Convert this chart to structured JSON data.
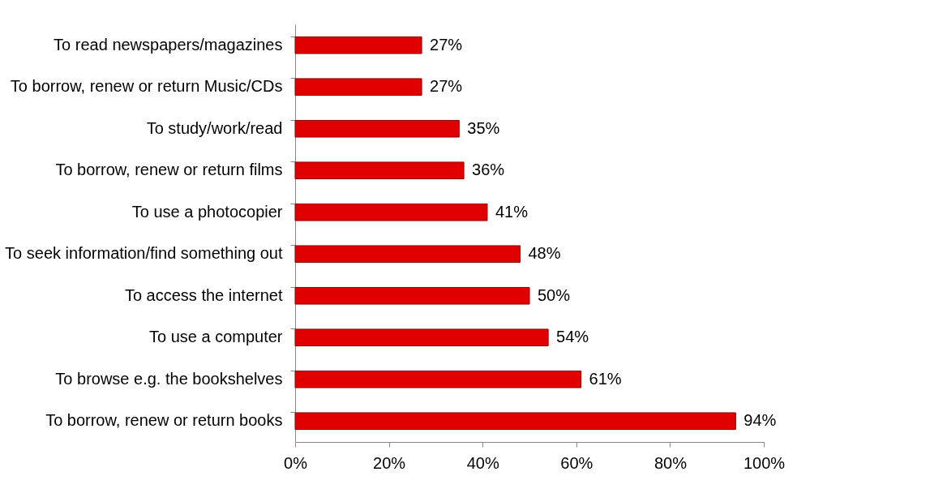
{
  "chart_data": {
    "type": "bar",
    "orientation": "horizontal",
    "categories": [
      "To read newspapers/magazines",
      "To borrow, renew or return Music/CDs",
      "To study/work/read",
      "To borrow, renew or return films",
      "To use a photocopier",
      "To seek information/find something out",
      "To access the internet",
      "To use a computer",
      "To browse e.g. the bookshelves",
      "To borrow, renew or return books"
    ],
    "values": [
      27,
      27,
      35,
      36,
      41,
      48,
      50,
      54,
      61,
      94
    ],
    "value_labels": [
      "27%",
      "27%",
      "35%",
      "36%",
      "41%",
      "48%",
      "50%",
      "54%",
      "61%",
      "94%"
    ],
    "color": "#e00000",
    "xlim": [
      0,
      100
    ],
    "xticks": [
      {
        "value": 0,
        "label": "0%"
      },
      {
        "value": 20,
        "label": "20%"
      },
      {
        "value": 40,
        "label": "40%"
      },
      {
        "value": 60,
        "label": "60%"
      },
      {
        "value": 80,
        "label": "80%"
      },
      {
        "value": 100,
        "label": "100%"
      }
    ],
    "grid": false
  }
}
